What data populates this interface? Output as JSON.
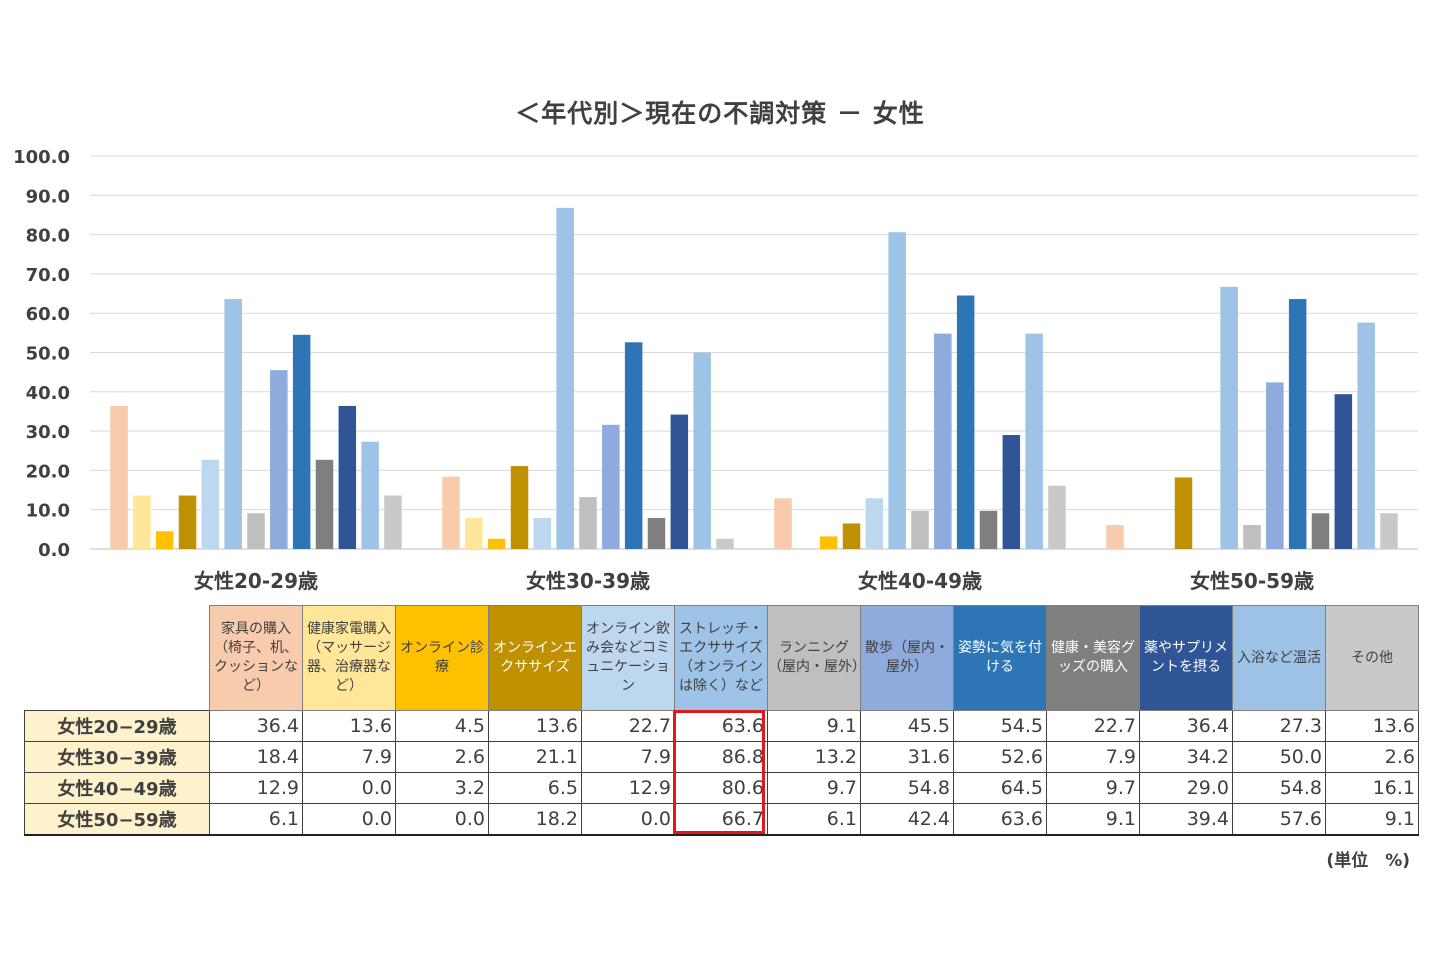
{
  "chart_data": {
    "type": "bar",
    "title": "＜年代別＞現在の不調対策 － 女性",
    "ylim": [
      0,
      100
    ],
    "ytick_step": 10,
    "yticks": [
      "100.0",
      "90.0",
      "80.0",
      "70.0",
      "60.0",
      "50.0",
      "40.0",
      "30.0",
      "20.0",
      "10.0",
      "0.0"
    ],
    "grid": true,
    "categories": [
      "女性20-29歳",
      "女性30-39歳",
      "女性40-49歳",
      "女性50-59歳"
    ],
    "series": [
      {
        "name": "家具の購入（椅子、机、クッションなど）",
        "color": "#f8cbad",
        "text_color": "#404040",
        "values": [
          36.4,
          18.4,
          12.9,
          6.1
        ]
      },
      {
        "name": "健康家電購入（マッサージ器、治療器など）",
        "color": "#ffe699",
        "text_color": "#404040",
        "values": [
          13.6,
          7.9,
          0.0,
          0.0
        ]
      },
      {
        "name": "オンライン診療",
        "color": "#ffc000",
        "text_color": "#404040",
        "values": [
          4.5,
          2.6,
          3.2,
          0.0
        ]
      },
      {
        "name": "オンラインエクササイズ",
        "color": "#bf9000",
        "text_color": "#ffffff",
        "values": [
          13.6,
          21.1,
          6.5,
          18.2
        ]
      },
      {
        "name": "オンライン飲み会などコミュニケーション",
        "color": "#bdd7ee",
        "text_color": "#404040",
        "values": [
          22.7,
          7.9,
          12.9,
          0.0
        ]
      },
      {
        "name": "ストレッチ・エクササイズ（オンラインは除く）など",
        "color": "#9dc3e6",
        "text_color": "#404040",
        "values": [
          63.6,
          86.8,
          80.6,
          66.7
        ]
      },
      {
        "name": "ランニング（屋内・屋外）",
        "color": "#bfbfbf",
        "text_color": "#404040",
        "values": [
          9.1,
          13.2,
          9.7,
          6.1
        ]
      },
      {
        "name": "散歩（屋内・屋外）",
        "color": "#8faadc",
        "text_color": "#404040",
        "values": [
          45.5,
          31.6,
          54.8,
          42.4
        ]
      },
      {
        "name": "姿勢に気を付ける",
        "color": "#2e75b6",
        "text_color": "#ffffff",
        "values": [
          54.5,
          52.6,
          64.5,
          63.6
        ]
      },
      {
        "name": "健康・美容グッズの購入",
        "color": "#7f7f7f",
        "text_color": "#ffffff",
        "values": [
          22.7,
          7.9,
          9.7,
          9.1
        ]
      },
      {
        "name": "薬やサプリメントを摂る",
        "color": "#2f5597",
        "text_color": "#ffffff",
        "values": [
          36.4,
          34.2,
          29.0,
          39.4
        ]
      },
      {
        "name": "入浴など温活",
        "color": "#9dc3e6",
        "text_color": "#404040",
        "values": [
          27.3,
          50.0,
          54.8,
          57.6
        ]
      },
      {
        "name": "その他",
        "color": "#c9c9c9",
        "text_color": "#404040",
        "values": [
          13.6,
          2.6,
          16.1,
          9.1
        ]
      }
    ]
  },
  "table": {
    "headers": [
      "家具の購入（椅子、机、クッションなど）",
      "健康家電購入（マッサージ器、治療器など）",
      "オンライン診療",
      "オンラインエクササイズ",
      "オンライン飲み会などコミュニケーション",
      "ストレッチ・エクササイズ（オンラインは除く）など",
      "ランニング（屋内・屋外）",
      "散歩（屋内・屋外）",
      "姿勢に気を付ける",
      "健康・美容グッズの購入",
      "薬やサプリメントを摂る",
      "入浴など温活",
      "その他"
    ],
    "rows": [
      {
        "label": "女性20−29歳",
        "cells": [
          "36.4",
          "13.6",
          "4.5",
          "13.6",
          "22.7",
          "63.6",
          "9.1",
          "45.5",
          "54.5",
          "22.7",
          "36.4",
          "27.3",
          "13.6"
        ]
      },
      {
        "label": "女性30−39歳",
        "cells": [
          "18.4",
          "7.9",
          "2.6",
          "21.1",
          "7.9",
          "86.8",
          "13.2",
          "31.6",
          "52.6",
          "7.9",
          "34.2",
          "50.0",
          "2.6"
        ]
      },
      {
        "label": "女性40−49歳",
        "cells": [
          "12.9",
          "0.0",
          "3.2",
          "6.5",
          "12.9",
          "80.6",
          "9.7",
          "54.8",
          "64.5",
          "9.7",
          "29.0",
          "54.8",
          "16.1"
        ]
      },
      {
        "label": "女性50−59歳",
        "cells": [
          "6.1",
          "0.0",
          "0.0",
          "18.2",
          "0.0",
          "66.7",
          "6.1",
          "42.4",
          "63.6",
          "9.1",
          "39.4",
          "57.6",
          "9.1"
        ]
      }
    ],
    "highlight_column": 5,
    "highlight_color": "#e0181e",
    "row_label_bg": "#fdf2cc"
  },
  "unit_note": "(単位　%)"
}
